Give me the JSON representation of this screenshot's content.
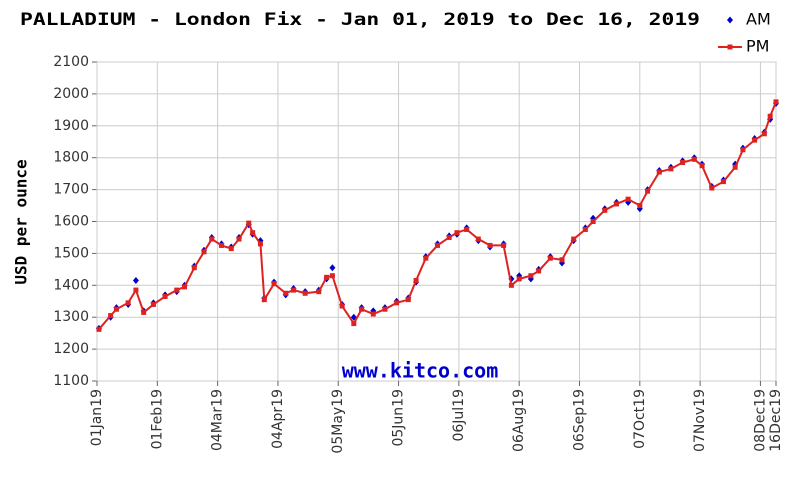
{
  "chart_data": {
    "type": "line",
    "title": "PALLADIUM - London Fix - Jan 01, 2019 to Dec 16, 2019",
    "y_label": "USD per ounce",
    "watermark": "www.kitco.com",
    "x": [
      "2019-01-02",
      "2019-01-08",
      "2019-01-11",
      "2019-01-17",
      "2019-01-21",
      "2019-01-25",
      "2019-01-30",
      "2019-02-05",
      "2019-02-11",
      "2019-02-15",
      "2019-02-20",
      "2019-02-25",
      "2019-03-01",
      "2019-03-06",
      "2019-03-11",
      "2019-03-15",
      "2019-03-20",
      "2019-03-22",
      "2019-03-26",
      "2019-03-28",
      "2019-04-02",
      "2019-04-08",
      "2019-04-12",
      "2019-04-18",
      "2019-04-25",
      "2019-04-29",
      "2019-05-02",
      "2019-05-07",
      "2019-05-13",
      "2019-05-17",
      "2019-05-23",
      "2019-05-29",
      "2019-06-04",
      "2019-06-10",
      "2019-06-14",
      "2019-06-19",
      "2019-06-25",
      "2019-07-01",
      "2019-07-05",
      "2019-07-10",
      "2019-07-16",
      "2019-07-22",
      "2019-07-29",
      "2019-08-02",
      "2019-08-06",
      "2019-08-12",
      "2019-08-16",
      "2019-08-22",
      "2019-08-28",
      "2019-09-03",
      "2019-09-09",
      "2019-09-13",
      "2019-09-19",
      "2019-09-25",
      "2019-10-01",
      "2019-10-07",
      "2019-10-11",
      "2019-10-17",
      "2019-10-23",
      "2019-10-29",
      "2019-11-04",
      "2019-11-08",
      "2019-11-13",
      "2019-11-19",
      "2019-11-25",
      "2019-11-29",
      "2019-12-05",
      "2019-12-10",
      "2019-12-13",
      "2019-12-16"
    ],
    "series": [
      {
        "name": "AM",
        "color": "#0000cc",
        "marker": "diamond",
        "line": false,
        "values": [
          1265,
          1300,
          1330,
          1340,
          1415,
          1320,
          1345,
          1370,
          1380,
          1400,
          1460,
          1510,
          1550,
          1530,
          1520,
          1550,
          1590,
          1560,
          1540,
          1360,
          1410,
          1370,
          1390,
          1380,
          1385,
          1420,
          1455,
          1340,
          1300,
          1330,
          1320,
          1330,
          1350,
          1360,
          1410,
          1490,
          1530,
          1555,
          1560,
          1580,
          1540,
          1520,
          1530,
          1420,
          1430,
          1420,
          1450,
          1490,
          1470,
          1540,
          1580,
          1610,
          1640,
          1660,
          1660,
          1640,
          1700,
          1760,
          1770,
          1790,
          1800,
          1780,
          1710,
          1730,
          1780,
          1830,
          1860,
          1880,
          1920,
          1970
        ]
      },
      {
        "name": "PM",
        "color": "#dd2222",
        "marker": "square",
        "line": true,
        "values": [
          1262,
          1305,
          1325,
          1345,
          1385,
          1315,
          1340,
          1365,
          1385,
          1395,
          1455,
          1505,
          1545,
          1525,
          1515,
          1545,
          1595,
          1565,
          1530,
          1355,
          1405,
          1375,
          1385,
          1375,
          1380,
          1425,
          1430,
          1335,
          1280,
          1325,
          1310,
          1325,
          1345,
          1355,
          1415,
          1485,
          1525,
          1550,
          1565,
          1575,
          1545,
          1525,
          1525,
          1400,
          1420,
          1430,
          1445,
          1485,
          1480,
          1545,
          1575,
          1600,
          1635,
          1655,
          1670,
          1650,
          1695,
          1755,
          1765,
          1785,
          1795,
          1775,
          1705,
          1725,
          1770,
          1825,
          1855,
          1875,
          1930,
          1975
        ]
      }
    ],
    "xlim": [
      "2019-01-01",
      "2019-12-16"
    ],
    "xticks": [
      {
        "value": "2019-01-01",
        "label": "01Jan19"
      },
      {
        "value": "2019-02-01",
        "label": "01Feb19"
      },
      {
        "value": "2019-03-04",
        "label": "04Mar19"
      },
      {
        "value": "2019-04-04",
        "label": "04Apr19"
      },
      {
        "value": "2019-05-05",
        "label": "05May19"
      },
      {
        "value": "2019-06-05",
        "label": "05Jun19"
      },
      {
        "value": "2019-07-06",
        "label": "06Jul19"
      },
      {
        "value": "2019-08-06",
        "label": "06Aug19"
      },
      {
        "value": "2019-09-06",
        "label": "06Sep19"
      },
      {
        "value": "2019-10-07",
        "label": "07Oct19"
      },
      {
        "value": "2019-11-07",
        "label": "07Nov19"
      },
      {
        "value": "2019-12-08",
        "label": "08Dec19"
      },
      {
        "value": "2019-12-16",
        "label": "16Dec19"
      }
    ],
    "ylim": [
      1100,
      2100
    ],
    "yticks": [
      1100,
      1200,
      1300,
      1400,
      1500,
      1600,
      1700,
      1800,
      1900,
      2000,
      2100
    ],
    "grid": true,
    "legend": "top-right"
  }
}
